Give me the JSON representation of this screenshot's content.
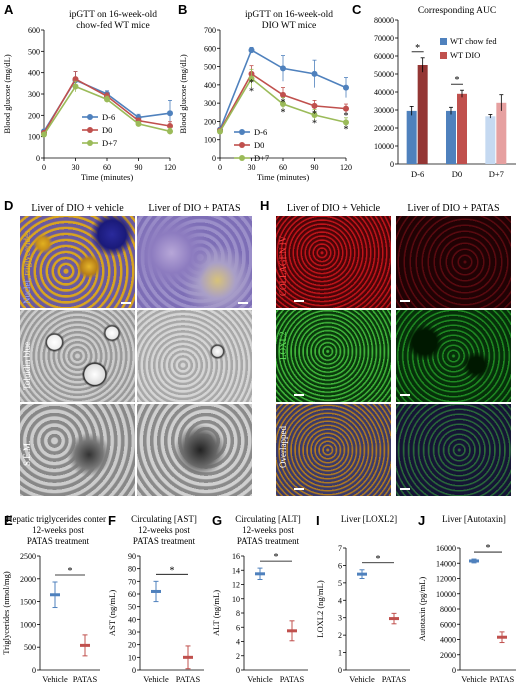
{
  "panels": {
    "A": {
      "letter": "A",
      "title_lines": [
        "ipGTT on 16-week-old",
        "chow-fed WT mice"
      ],
      "ylabel": "Blood glucose (mg/dL)",
      "xlabel": "Time (minutes)",
      "legend": [
        "D-6",
        "D0",
        "D+7"
      ]
    },
    "B": {
      "letter": "B",
      "title_lines": [
        "ipGTT on 16-week-old",
        "DIO WT mice"
      ],
      "ylabel": "Blood glucose (mg/dL)",
      "xlabel": "Time (minutes)",
      "legend": [
        "D-6",
        "D0",
        "D+7"
      ]
    },
    "C": {
      "letter": "C",
      "title": "Corresponding AUC",
      "legend": [
        "WT chow fed",
        "WT DIO"
      ]
    },
    "D": {
      "letter": "D",
      "col1": "Liver of DIO + vehicle",
      "col2": "Liver of DIO + PATAS",
      "row1_a": "Nuclei, ",
      "row1_b": "triglycerides",
      "row2": "Toluidin blue",
      "row3": "S.E.M."
    },
    "H": {
      "letter": "H",
      "col1": "Liver of DIO + Vehicle",
      "col2": "Liver of DIO + PATAS",
      "row1": "COLLAGEN IV",
      "row2": "LOXL2",
      "row3": "Overlapped"
    },
    "E": {
      "letter": "E",
      "title_lines": [
        "Hepatic triglycerides content",
        "12-weeks post",
        "PATAS treatment"
      ]
    },
    "F": {
      "letter": "F",
      "title_lines": [
        "Circulating [AST]",
        "12-weeks post",
        "PATAS treatment"
      ]
    },
    "G": {
      "letter": "G",
      "title_lines": [
        "Circulating [ALT]",
        "12-weeks post",
        "PATAS treatment"
      ]
    },
    "I": {
      "letter": "I",
      "title_lines": [
        "Liver [LOXL2]"
      ]
    },
    "J": {
      "letter": "J",
      "title_lines": [
        "Liver [Autotaxin]"
      ]
    }
  },
  "colors": {
    "d_minus6": "#4f81bd",
    "d0": "#c0504d",
    "d_plus7": "#9bbb59",
    "chow": "#4f81bd",
    "dio": "#c0504d",
    "vehicle": "#4f81bd",
    "patas": "#c0504d"
  },
  "chart_data": [
    {
      "id": "A",
      "type": "line",
      "x": [
        0,
        30,
        60,
        90,
        120
      ],
      "xlim": [
        0,
        120
      ],
      "ylim": [
        0,
        600
      ],
      "xticks": [
        "0",
        "30",
        "60",
        "90",
        "120"
      ],
      "yticks": [
        "0",
        "100",
        "200",
        "300",
        "400",
        "500",
        "600"
      ],
      "series": [
        {
          "name": "D-6",
          "values": [
            125,
            365,
            300,
            190,
            210
          ],
          "err": [
            8,
            40,
            15,
            15,
            60
          ]
        },
        {
          "name": "D0",
          "values": [
            118,
            370,
            290,
            175,
            150
          ],
          "err": [
            8,
            35,
            15,
            12,
            20
          ]
        },
        {
          "name": "D+7",
          "values": [
            110,
            335,
            275,
            160,
            125
          ],
          "err": [
            8,
            25,
            15,
            12,
            15
          ]
        }
      ]
    },
    {
      "id": "B",
      "type": "line",
      "x": [
        0,
        30,
        60,
        90,
        120
      ],
      "xlim": [
        0,
        120
      ],
      "ylim": [
        0,
        700
      ],
      "xticks": [
        "0",
        "30",
        "60",
        "90",
        "120"
      ],
      "yticks": [
        "0",
        "100",
        "200",
        "300",
        "400",
        "500",
        "600",
        "700"
      ],
      "series": [
        {
          "name": "D-6",
          "values": [
            155,
            590,
            490,
            460,
            385
          ],
          "err": [
            10,
            15,
            70,
            75,
            55
          ]
        },
        {
          "name": "D0",
          "values": [
            150,
            460,
            345,
            285,
            270
          ],
          "err": [
            10,
            45,
            40,
            30,
            25
          ]
        },
        {
          "name": "D+7",
          "values": [
            145,
            435,
            295,
            235,
            195
          ],
          "err": [
            10,
            50,
            35,
            30,
            25
          ]
        }
      ],
      "stars": [
        {
          "x": 30,
          "y": 415,
          "text": "*"
        },
        {
          "x": 30,
          "y": 370,
          "text": "*"
        },
        {
          "x": 60,
          "y": 310,
          "text": "*"
        },
        {
          "x": 60,
          "y": 255,
          "text": "*"
        },
        {
          "x": 90,
          "y": 245,
          "text": "*"
        },
        {
          "x": 90,
          "y": 195,
          "text": "*"
        },
        {
          "x": 120,
          "y": 235,
          "text": "*"
        },
        {
          "x": 120,
          "y": 160,
          "text": "*"
        }
      ]
    },
    {
      "id": "C",
      "type": "bar",
      "categories": [
        "D-6",
        "D0",
        "D+7"
      ],
      "ylim": [
        0,
        80000
      ],
      "yticks": [
        "0",
        "10000",
        "20000",
        "30000",
        "40000",
        "50000",
        "60000",
        "70000",
        "80000"
      ],
      "series": [
        {
          "name": "WT chow fed",
          "values": [
            29500,
            29500,
            26500
          ],
          "err": [
            2500,
            2000,
            1000
          ],
          "colors": [
            "#4f81bd",
            "#4f81bd",
            "#c5d9f1"
          ]
        },
        {
          "name": "WT DIO",
          "values": [
            55000,
            39000,
            34000
          ],
          "err": [
            4000,
            2000,
            4500
          ],
          "colors": [
            "#943634",
            "#c0504d",
            "#e6a0a0"
          ]
        }
      ],
      "brackets": [
        {
          "cat": 0,
          "text": "*"
        },
        {
          "cat": 1,
          "text": "*"
        }
      ]
    },
    {
      "id": "E",
      "type": "bar",
      "categories": [
        "Vehicle",
        "PATAS"
      ],
      "ylabel": "Triglycerides (nmol/mg)",
      "ylim": [
        0,
        2500
      ],
      "yticks": [
        "0",
        "500",
        "1000",
        "1500",
        "2000",
        "2500"
      ],
      "values": [
        1650,
        540
      ],
      "err": [
        280,
        230
      ],
      "sig": "*"
    },
    {
      "id": "F",
      "type": "bar",
      "categories": [
        "Vehicle",
        "PATAS"
      ],
      "ylabel": "AST (ng/mL)",
      "ylim": [
        0,
        90
      ],
      "yticks": [
        "0",
        "10",
        "20",
        "30",
        "40",
        "50",
        "60",
        "70",
        "80",
        "90"
      ],
      "values": [
        62,
        10
      ],
      "err": [
        8,
        9
      ],
      "sig": "*"
    },
    {
      "id": "G",
      "type": "bar",
      "categories": [
        "Vehicle",
        "PATAS"
      ],
      "ylabel": "ALT (ng/mL)",
      "ylim": [
        0,
        16
      ],
      "yticks": [
        "0",
        "2",
        "4",
        "6",
        "8",
        "10",
        "12",
        "14",
        "16"
      ],
      "values": [
        13.5,
        5.5
      ],
      "err": [
        0.8,
        1.4
      ],
      "sig": "*"
    },
    {
      "id": "I",
      "type": "bar",
      "categories": [
        "Vehicle",
        "PATAS"
      ],
      "ylabel": "LOXL2 (ng/mL)",
      "ylim": [
        0,
        7
      ],
      "yticks": [
        "0",
        "1",
        "2",
        "3",
        "4",
        "5",
        "6",
        "7"
      ],
      "values": [
        5.5,
        2.95
      ],
      "err": [
        0.25,
        0.3
      ],
      "sig": "*"
    },
    {
      "id": "J",
      "type": "bar",
      "categories": [
        "Vehicle",
        "PATAS"
      ],
      "ylabel": "Autotaxin (pg/mL)",
      "ylim": [
        0,
        16000
      ],
      "yticks": [
        "0",
        "2000",
        "4000",
        "6000",
        "8000",
        "10000",
        "12000",
        "14000",
        "16000"
      ],
      "values": [
        14300,
        4300
      ],
      "err": [
        250,
        700
      ],
      "sig": "*"
    }
  ]
}
